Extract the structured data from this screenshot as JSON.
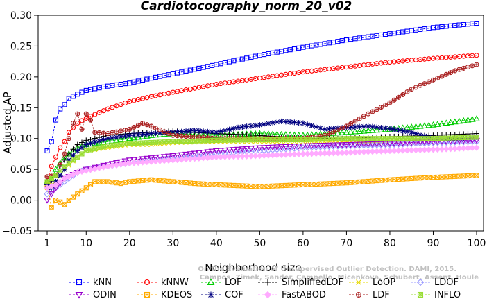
{
  "chart_data": {
    "type": "line",
    "title": "Cardiotocography_norm_20_v02",
    "xlabel": "Neighborhood size",
    "ylabel": "Adjusted AP",
    "xlim": [
      1,
      100
    ],
    "ylim": [
      -0.05,
      0.3
    ],
    "xticks": [
      1,
      10,
      20,
      30,
      40,
      50,
      60,
      70,
      80,
      90,
      100
    ],
    "yticks": [
      -0.05,
      0.0,
      0.05,
      0.1,
      0.15,
      0.2,
      0.25,
      0.3
    ],
    "ytick_labels": [
      "−0.05",
      "0.00",
      "0.05",
      "0.10",
      "0.15",
      "0.20",
      "0.25",
      "0.30"
    ],
    "grid": false,
    "legend_position": "bottom",
    "watermark": [
      "Campos, Zimek, Sander, Campello, Micenkova, Schubert, Assent, Houle",
      "On the Evaluation of Unsupervised Outlier Detection. DAMI, 2015."
    ],
    "series": [
      {
        "name": "kNN",
        "color": "#0000ff",
        "marker": "square",
        "points": [
          [
            1,
            0.08
          ],
          [
            2,
            0.095
          ],
          [
            3,
            0.13
          ],
          [
            4,
            0.148
          ],
          [
            5,
            0.155
          ],
          [
            6,
            0.165
          ],
          [
            8,
            0.172
          ],
          [
            10,
            0.178
          ],
          [
            15,
            0.185
          ],
          [
            20,
            0.19
          ],
          [
            25,
            0.198
          ],
          [
            30,
            0.205
          ],
          [
            40,
            0.22
          ],
          [
            50,
            0.235
          ],
          [
            60,
            0.248
          ],
          [
            70,
            0.26
          ],
          [
            80,
            0.27
          ],
          [
            90,
            0.28
          ],
          [
            100,
            0.287
          ]
        ]
      },
      {
        "name": "kNNW",
        "color": "#ff0000",
        "marker": "circle",
        "points": [
          [
            1,
            0.03
          ],
          [
            2,
            0.055
          ],
          [
            3,
            0.07
          ],
          [
            4,
            0.085
          ],
          [
            5,
            0.095
          ],
          [
            6,
            0.11
          ],
          [
            8,
            0.125
          ],
          [
            10,
            0.133
          ],
          [
            15,
            0.148
          ],
          [
            20,
            0.16
          ],
          [
            25,
            0.168
          ],
          [
            30,
            0.175
          ],
          [
            40,
            0.188
          ],
          [
            50,
            0.198
          ],
          [
            60,
            0.208
          ],
          [
            70,
            0.216
          ],
          [
            80,
            0.224
          ],
          [
            90,
            0.23
          ],
          [
            100,
            0.235
          ]
        ]
      },
      {
        "name": "LOF",
        "color": "#00cc00",
        "marker": "triangle-up",
        "points": [
          [
            1,
            0.03
          ],
          [
            2,
            0.035
          ],
          [
            3,
            0.05
          ],
          [
            4,
            0.06
          ],
          [
            5,
            0.07
          ],
          [
            6,
            0.075
          ],
          [
            8,
            0.085
          ],
          [
            10,
            0.09
          ],
          [
            15,
            0.095
          ],
          [
            20,
            0.1
          ],
          [
            25,
            0.105
          ],
          [
            30,
            0.108
          ],
          [
            40,
            0.105
          ],
          [
            50,
            0.108
          ],
          [
            60,
            0.105
          ],
          [
            70,
            0.11
          ],
          [
            80,
            0.115
          ],
          [
            90,
            0.122
          ],
          [
            100,
            0.132
          ]
        ]
      },
      {
        "name": "SimplifiedLOF",
        "color": "#000000",
        "marker": "plus",
        "points": [
          [
            1,
            0.025
          ],
          [
            2,
            0.03
          ],
          [
            3,
            0.04
          ],
          [
            4,
            0.055
          ],
          [
            5,
            0.065
          ],
          [
            6,
            0.075
          ],
          [
            8,
            0.09
          ],
          [
            10,
            0.097
          ],
          [
            15,
            0.105
          ],
          [
            20,
            0.108
          ],
          [
            25,
            0.11
          ],
          [
            30,
            0.112
          ],
          [
            40,
            0.108
          ],
          [
            50,
            0.105
          ],
          [
            60,
            0.1
          ],
          [
            70,
            0.1
          ],
          [
            80,
            0.103
          ],
          [
            90,
            0.105
          ],
          [
            100,
            0.108
          ]
        ]
      },
      {
        "name": "LoOP",
        "color": "#e6d800",
        "marker": "x",
        "points": [
          [
            1,
            0.02
          ],
          [
            3,
            0.03
          ],
          [
            5,
            0.05
          ],
          [
            8,
            0.07
          ],
          [
            10,
            0.08
          ],
          [
            15,
            0.085
          ],
          [
            20,
            0.09
          ],
          [
            25,
            0.09
          ],
          [
            30,
            0.093
          ],
          [
            40,
            0.095
          ],
          [
            50,
            0.095
          ],
          [
            60,
            0.095
          ],
          [
            70,
            0.095
          ],
          [
            80,
            0.095
          ],
          [
            90,
            0.097
          ],
          [
            100,
            0.1
          ]
        ]
      },
      {
        "name": "LDOF",
        "color": "#9999ff",
        "marker": "diamond",
        "points": [
          [
            1,
            0.01
          ],
          [
            3,
            0.02
          ],
          [
            5,
            0.03
          ],
          [
            8,
            0.045
          ],
          [
            10,
            0.05
          ],
          [
            15,
            0.055
          ],
          [
            20,
            0.06
          ],
          [
            30,
            0.068
          ],
          [
            40,
            0.075
          ],
          [
            50,
            0.08
          ],
          [
            60,
            0.085
          ],
          [
            70,
            0.088
          ],
          [
            80,
            0.09
          ],
          [
            90,
            0.093
          ],
          [
            100,
            0.095
          ]
        ]
      },
      {
        "name": "ODIN",
        "color": "#9900cc",
        "marker": "triangle-down",
        "points": [
          [
            1,
            0.0
          ],
          [
            2,
            0.01
          ],
          [
            3,
            0.02
          ],
          [
            5,
            0.035
          ],
          [
            8,
            0.045
          ],
          [
            10,
            0.05
          ],
          [
            15,
            0.058
          ],
          [
            20,
            0.065
          ],
          [
            30,
            0.072
          ],
          [
            40,
            0.08
          ],
          [
            50,
            0.085
          ],
          [
            60,
            0.088
          ],
          [
            70,
            0.09
          ],
          [
            80,
            0.092
          ],
          [
            90,
            0.095
          ],
          [
            100,
            0.097
          ]
        ]
      },
      {
        "name": "KDEOS",
        "color": "#ffaa00",
        "marker": "square-x",
        "points": [
          [
            1,
            0.025
          ],
          [
            2,
            -0.012
          ],
          [
            3,
            0.0
          ],
          [
            4,
            -0.003
          ],
          [
            5,
            -0.007
          ],
          [
            6,
            0.0
          ],
          [
            7,
            0.005
          ],
          [
            8,
            0.01
          ],
          [
            9,
            0.015
          ],
          [
            10,
            0.02
          ],
          [
            12,
            0.03
          ],
          [
            15,
            0.03
          ],
          [
            18,
            0.027
          ],
          [
            20,
            0.03
          ],
          [
            25,
            0.033
          ],
          [
            30,
            0.03
          ],
          [
            35,
            0.027
          ],
          [
            40,
            0.025
          ],
          [
            50,
            0.022
          ],
          [
            60,
            0.025
          ],
          [
            70,
            0.028
          ],
          [
            80,
            0.033
          ],
          [
            90,
            0.037
          ],
          [
            100,
            0.04
          ]
        ]
      },
      {
        "name": "COF",
        "color": "#000080",
        "marker": "star",
        "points": [
          [
            1,
            0.025
          ],
          [
            2,
            0.02
          ],
          [
            3,
            0.03
          ],
          [
            4,
            0.04
          ],
          [
            5,
            0.05
          ],
          [
            6,
            0.065
          ],
          [
            8,
            0.08
          ],
          [
            10,
            0.09
          ],
          [
            15,
            0.1
          ],
          [
            20,
            0.105
          ],
          [
            25,
            0.108
          ],
          [
            30,
            0.11
          ],
          [
            35,
            0.113
          ],
          [
            40,
            0.11
          ],
          [
            45,
            0.118
          ],
          [
            50,
            0.122
          ],
          [
            55,
            0.128
          ],
          [
            60,
            0.125
          ],
          [
            65,
            0.115
          ],
          [
            70,
            0.118
          ],
          [
            75,
            0.12
          ],
          [
            80,
            0.116
          ],
          [
            85,
            0.11
          ],
          [
            90,
            0.1
          ],
          [
            95,
            0.1
          ],
          [
            100,
            0.102
          ]
        ]
      },
      {
        "name": "FastABOD",
        "color": "#ffaaff",
        "marker": "diamond-filled",
        "points": [
          [
            1,
            0.02
          ],
          [
            3,
            0.025
          ],
          [
            5,
            0.035
          ],
          [
            8,
            0.045
          ],
          [
            10,
            0.048
          ],
          [
            15,
            0.055
          ],
          [
            20,
            0.06
          ],
          [
            30,
            0.065
          ],
          [
            40,
            0.07
          ],
          [
            50,
            0.072
          ],
          [
            60,
            0.075
          ],
          [
            70,
            0.077
          ],
          [
            80,
            0.08
          ],
          [
            90,
            0.082
          ],
          [
            100,
            0.085
          ]
        ]
      },
      {
        "name": "LDF",
        "color": "#aa2222",
        "marker": "circle-plus",
        "points": [
          [
            1,
            0.038
          ],
          [
            3,
            0.04
          ],
          [
            5,
            0.075
          ],
          [
            6,
            0.1
          ],
          [
            7,
            0.125
          ],
          [
            8,
            0.14
          ],
          [
            9,
            0.115
          ],
          [
            10,
            0.14
          ],
          [
            11,
            0.13
          ],
          [
            12,
            0.11
          ],
          [
            15,
            0.108
          ],
          [
            20,
            0.115
          ],
          [
            23,
            0.125
          ],
          [
            25,
            0.12
          ],
          [
            30,
            0.105
          ],
          [
            40,
            0.1
          ],
          [
            50,
            0.1
          ],
          [
            60,
            0.1
          ],
          [
            65,
            0.105
          ],
          [
            70,
            0.12
          ],
          [
            75,
            0.14
          ],
          [
            80,
            0.158
          ],
          [
            85,
            0.18
          ],
          [
            90,
            0.195
          ],
          [
            95,
            0.21
          ],
          [
            100,
            0.22
          ]
        ]
      },
      {
        "name": "INFLO",
        "color": "#99dd33",
        "marker": "square-asterisk",
        "points": [
          [
            1,
            0.03
          ],
          [
            3,
            0.04
          ],
          [
            5,
            0.055
          ],
          [
            8,
            0.07
          ],
          [
            10,
            0.08
          ],
          [
            15,
            0.088
          ],
          [
            20,
            0.092
          ],
          [
            30,
            0.095
          ],
          [
            40,
            0.097
          ],
          [
            50,
            0.098
          ],
          [
            60,
            0.098
          ],
          [
            70,
            0.1
          ],
          [
            80,
            0.1
          ],
          [
            90,
            0.1
          ],
          [
            100,
            0.102
          ]
        ]
      }
    ]
  }
}
